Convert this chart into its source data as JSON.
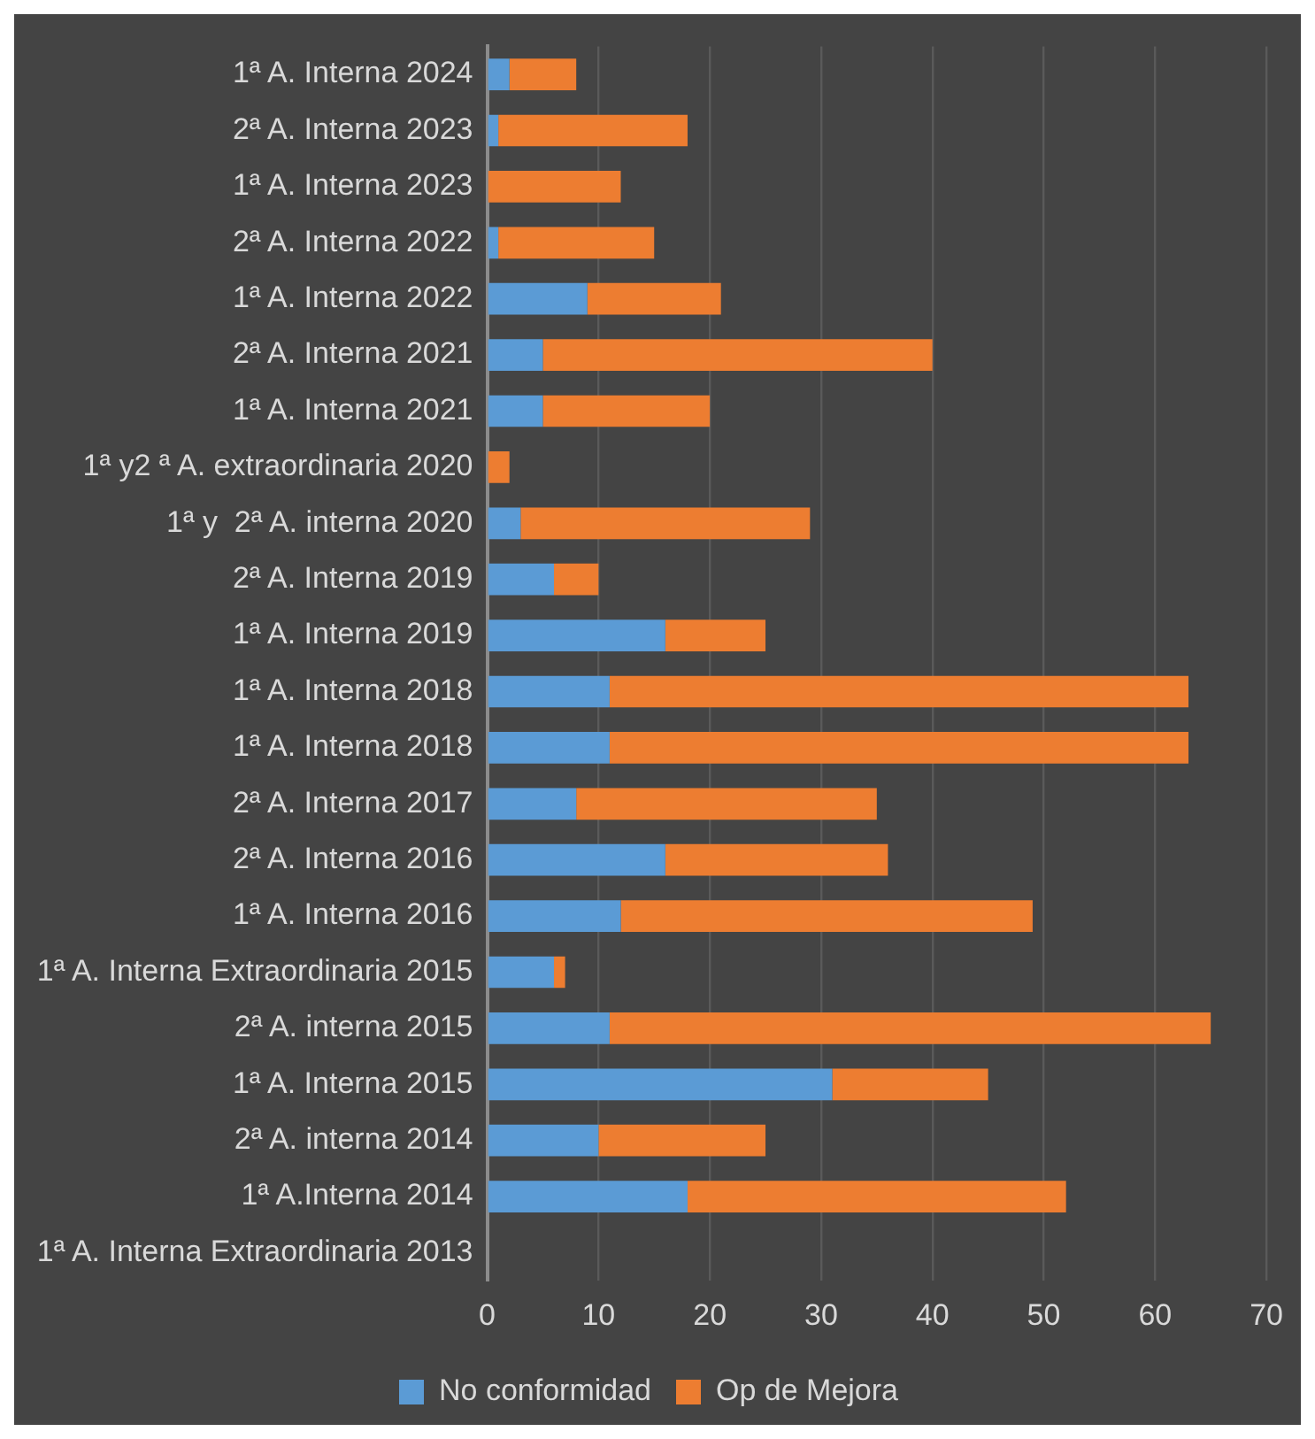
{
  "chart_data": {
    "type": "bar",
    "orientation": "horizontal",
    "stacked": true,
    "categories": [
      "1ª A. Interna 2024",
      "2ª A. Interna 2023",
      "1ª A. Interna 2023",
      "2ª A. Interna 2022",
      "1ª A. Interna 2022",
      "2ª A. Interna 2021",
      "1ª A. Interna 2021",
      "1ª y2 ª A. extraordinaria 2020",
      "1ª y  2ª A. interna 2020",
      "2ª A. Interna 2019",
      "1ª A. Interna 2019",
      "1ª A. Interna 2018",
      "1ª A. Interna 2018",
      "2ª A. Interna 2017",
      "2ª A. Interna 2016",
      "1ª A. Interna 2016",
      "1ª A. Interna Extraordinaria 2015",
      "2ª A. interna 2015",
      "1ª A. Interna 2015",
      "2ª A. interna 2014",
      "1ª A.Interna 2014",
      "1ª A. Interna Extraordinaria 2013"
    ],
    "series": [
      {
        "name": "No conformidad",
        "color": "#5b9bd5",
        "values": [
          2,
          1,
          0,
          1,
          9,
          5,
          5,
          0,
          3,
          6,
          16,
          11,
          11,
          8,
          16,
          12,
          6,
          11,
          31,
          10,
          18,
          0
        ]
      },
      {
        "name": "Op de Mejora",
        "color": "#ed7d31",
        "values": [
          6,
          17,
          12,
          14,
          12,
          35,
          15,
          2,
          26,
          4,
          9,
          52,
          52,
          27,
          20,
          37,
          1,
          54,
          14,
          15,
          34,
          0
        ]
      }
    ],
    "xlim": [
      0,
      70
    ],
    "xticks": [
      0,
      10,
      20,
      30,
      40,
      50,
      60,
      70
    ],
    "grid": "x",
    "legend": "bottom"
  }
}
